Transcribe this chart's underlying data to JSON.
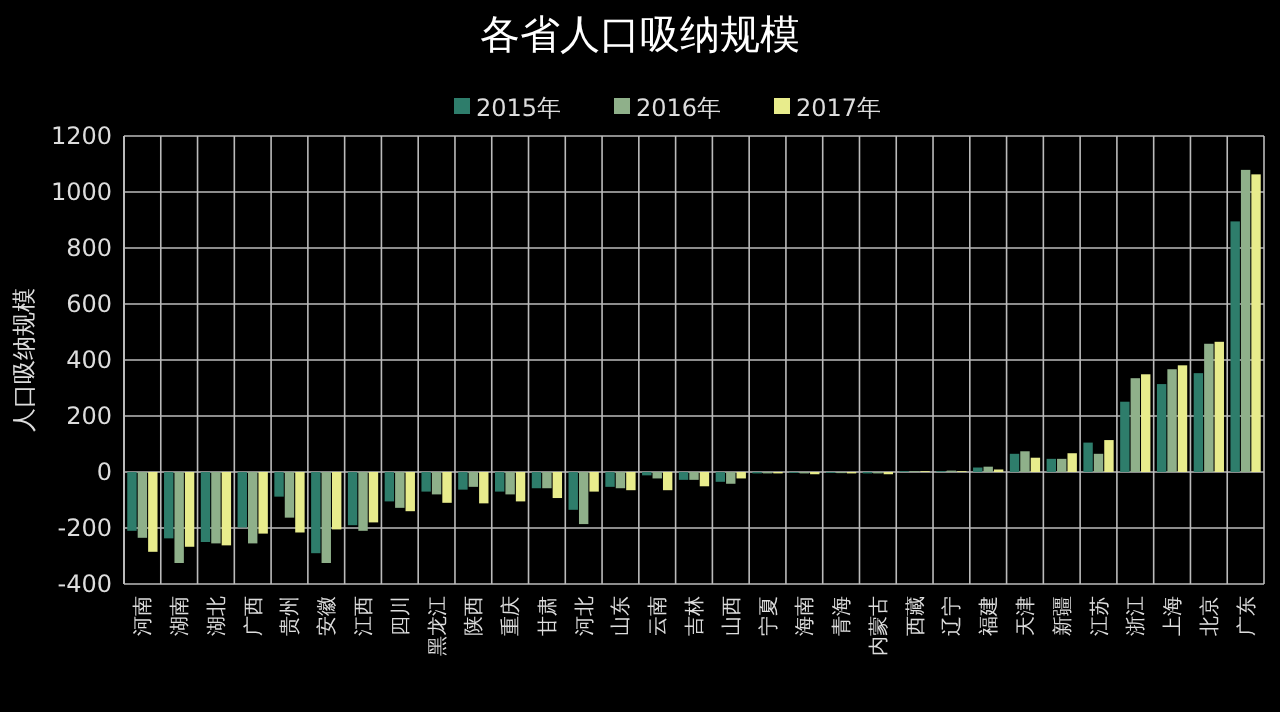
{
  "chart_data": {
    "type": "bar",
    "title": "各省人口吸纳规模",
    "ylabel": "人口吸纳规模",
    "categories": [
      "河南",
      "湖南",
      "湖北",
      "广西",
      "贵州",
      "安徽",
      "江西",
      "四川",
      "黑龙江",
      "陕西",
      "重庆",
      "甘肃",
      "河北",
      "山东",
      "云南",
      "吉林",
      "山西",
      "宁夏",
      "海南",
      "青海",
      "内蒙古",
      "西藏",
      "辽宁",
      "福建",
      "天津",
      "新疆",
      "江苏",
      "浙江",
      "上海",
      "北京",
      "广东"
    ],
    "series": [
      {
        "name": "2015年",
        "color": "#2e7d6b",
        "values": [
          -210,
          -237,
          -250,
          -198,
          -88,
          -290,
          -190,
          -105,
          -70,
          -63,
          -70,
          -58,
          -135,
          -53,
          -12,
          -28,
          -35,
          -5,
          -3,
          -3,
          -5,
          3,
          3,
          16,
          65,
          47,
          105,
          251,
          314,
          353,
          895
        ]
      },
      {
        "name": "2016年",
        "color": "#8fb08a",
        "values": [
          -235,
          -325,
          -255,
          -255,
          -163,
          -325,
          -210,
          -128,
          -80,
          -53,
          -80,
          -58,
          -186,
          -58,
          -23,
          -28,
          -42,
          -5,
          -5,
          -4,
          -5,
          3,
          5,
          19,
          74,
          47,
          65,
          335,
          367,
          458,
          1079
        ]
      },
      {
        "name": "2017年",
        "color": "#e8ec8c",
        "values": [
          -285,
          -267,
          -262,
          -220,
          -216,
          -205,
          -180,
          -140,
          -110,
          -112,
          -105,
          -93,
          -70,
          -65,
          -65,
          -51,
          -23,
          -5,
          -8,
          -5,
          -8,
          3,
          3,
          9,
          51,
          67,
          114,
          349,
          381,
          465,
          1063
        ]
      }
    ],
    "ylim": [
      -400,
      1200
    ],
    "yticks": [
      -400,
      -200,
      0,
      200,
      400,
      600,
      800,
      1000,
      1200
    ],
    "grid": true,
    "legend": "top"
  }
}
